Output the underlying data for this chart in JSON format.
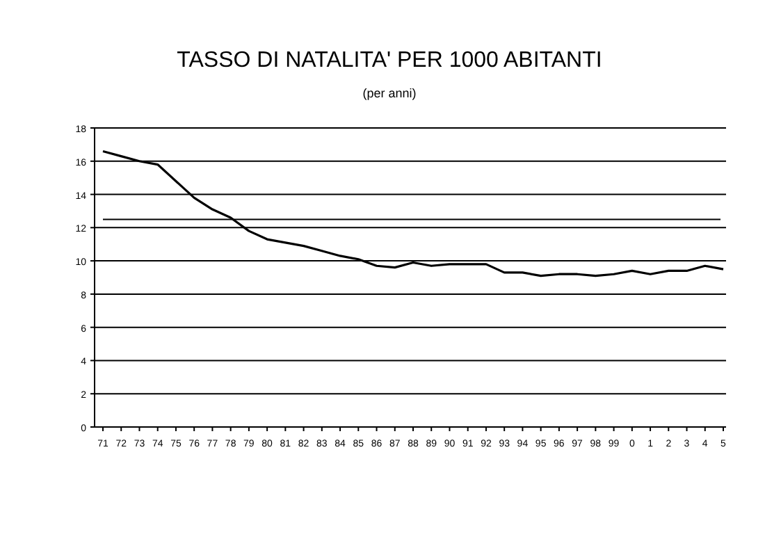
{
  "chart_data": {
    "type": "line",
    "title": "TASSO DI NATALITA' PER 1000 ABITANTI",
    "subtitle": "(per anni)",
    "categories": [
      "71",
      "72",
      "73",
      "74",
      "75",
      "76",
      "77",
      "78",
      "79",
      "80",
      "81",
      "82",
      "83",
      "84",
      "85",
      "86",
      "87",
      "88",
      "89",
      "90",
      "91",
      "92",
      "93",
      "94",
      "95",
      "96",
      "97",
      "98",
      "99",
      "0",
      "1",
      "2",
      "3",
      "4",
      "5"
    ],
    "series": [
      {
        "color": "#000000",
        "values": [
          16.6,
          16.3,
          16.0,
          15.8,
          14.8,
          13.8,
          13.1,
          12.6,
          11.8,
          11.3,
          11.1,
          10.9,
          10.6,
          10.3,
          10.1,
          9.7,
          9.6,
          9.9,
          9.7,
          9.8,
          9.8,
          9.8,
          9.3,
          9.3,
          9.1,
          9.2,
          9.2,
          9.1,
          9.2,
          9.4,
          9.2,
          9.4,
          9.4,
          9.7,
          9.5
        ]
      }
    ],
    "ylim": [
      0,
      18
    ],
    "yticks": [
      0,
      2,
      4,
      6,
      8,
      10,
      12,
      14,
      16,
      18
    ],
    "grid": "y",
    "marker": "none",
    "line_style": "solid",
    "ref_lines": [
      {
        "axis": "y",
        "value": 12.5,
        "color": "#000000"
      }
    ]
  }
}
